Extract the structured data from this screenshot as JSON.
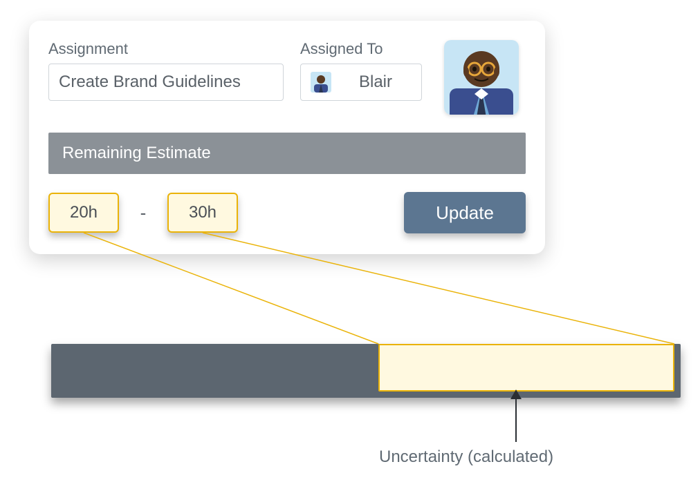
{
  "card": {
    "assignment_label": "Assignment",
    "assignment_value": "Create Brand Guidelines",
    "assigned_to_label": "Assigned To",
    "assignee_name": "Blair",
    "section_title": "Remaining Estimate",
    "estimate_low": "20h",
    "range_separator": "-",
    "estimate_high": "30h",
    "update_label": "Update"
  },
  "bar": {
    "uncertainty_start_pct": 52,
    "uncertainty_width_pct": 47,
    "bg_color": "#5c6670",
    "uncertainty_fill": "#fff9e0",
    "uncertainty_border": "#eab308"
  },
  "annotation": {
    "label": "Uncertainty (calculated)",
    "arrow_color": "#2a2e33"
  },
  "avatar": {
    "bg": "#c7e5f5",
    "skin": "#5a3a22",
    "shirt": "#3a4e8f",
    "tie1": "#2a3550",
    "tie2": "#6fa8d6",
    "glasses": "#e6a63a"
  },
  "colors": {
    "card_bg": "#ffffff",
    "label_text": "#606a73",
    "input_border": "#cfd4d9",
    "input_text": "#5a6168",
    "banner_bg": "#8b9197",
    "banner_text": "#ffffff",
    "est_fill": "#fff9e0",
    "est_border": "#eab308",
    "btn_bg": "#5c7691",
    "btn_text": "#ffffff",
    "connector": "#eab308"
  }
}
